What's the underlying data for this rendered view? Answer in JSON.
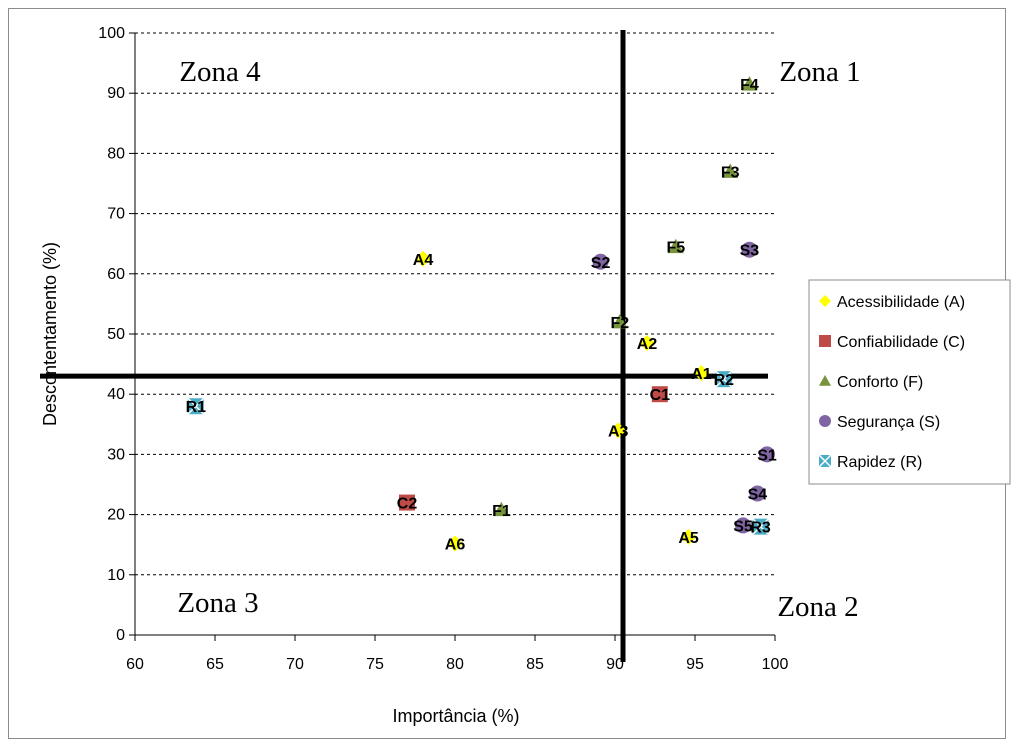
{
  "chart_data": {
    "type": "scatter",
    "xlabel": "Importância (%)",
    "ylabel": "Descontentamento (%)",
    "xlim": [
      60,
      100
    ],
    "ylim": [
      0,
      100
    ],
    "xticks": [
      "60",
      "65",
      "70",
      "75",
      "80",
      "85",
      "90",
      "95",
      "100"
    ],
    "yticks": [
      "0",
      "10",
      "20",
      "30",
      "40",
      "50",
      "60",
      "70",
      "80",
      "90",
      "100"
    ],
    "grid": "horizontal dashed",
    "legend_position": "right",
    "reference_lines": {
      "vertical_x": 90.5,
      "horizontal_y": 43
    },
    "zones": [
      {
        "label": "Zona 1",
        "corner": "top-right"
      },
      {
        "label": "Zona 2",
        "corner": "bottom-right"
      },
      {
        "label": "Zona 3",
        "corner": "bottom-left"
      },
      {
        "label": "Zona 4",
        "corner": "top-left"
      }
    ],
    "series": [
      {
        "name": "Acessibilidade (A)",
        "marker": "diamond",
        "color": "#FFFF00",
        "points": [
          {
            "label": "A1",
            "x": 95.4,
            "y": 43.5
          },
          {
            "label": "A2",
            "x": 92,
            "y": 48.5
          },
          {
            "label": "A3",
            "x": 90.2,
            "y": 34
          },
          {
            "label": "A4",
            "x": 78,
            "y": 62.5
          },
          {
            "label": "A5",
            "x": 94.6,
            "y": 16.3
          },
          {
            "label": "A6",
            "x": 80,
            "y": 15.2
          }
        ]
      },
      {
        "name": "Confiabilidade (C)",
        "marker": "square",
        "color": "#BE4B48",
        "points": [
          {
            "label": "C1",
            "x": 92.8,
            "y": 40
          },
          {
            "label": "C2",
            "x": 77,
            "y": 22
          }
        ]
      },
      {
        "name": "Conforto (F)",
        "marker": "triangle",
        "color": "#77933C",
        "points": [
          {
            "label": "F1",
            "x": 82.9,
            "y": 20.8
          },
          {
            "label": "F2",
            "x": 90.3,
            "y": 52
          },
          {
            "label": "F3",
            "x": 97.2,
            "y": 77
          },
          {
            "label": "F4",
            "x": 98.4,
            "y": 91.5
          },
          {
            "label": "F5",
            "x": 93.8,
            "y": 64.5
          }
        ]
      },
      {
        "name": "Segurança (S)",
        "marker": "circle",
        "color": "#7F65A2",
        "points": [
          {
            "label": "S1",
            "x": 99.5,
            "y": 30
          },
          {
            "label": "S2",
            "x": 89.1,
            "y": 62
          },
          {
            "label": "S3",
            "x": 98.4,
            "y": 64
          },
          {
            "label": "S4",
            "x": 98.9,
            "y": 23.5
          },
          {
            "label": "S5",
            "x": 98,
            "y": 18.2
          }
        ]
      },
      {
        "name": "Rapidez (R)",
        "marker": "star",
        "color": "#4BACC6",
        "points": [
          {
            "label": "R1",
            "x": 63.8,
            "y": 38
          },
          {
            "label": "R2",
            "x": 96.8,
            "y": 42.5
          },
          {
            "label": "R3",
            "x": 99.1,
            "y": 18
          }
        ]
      }
    ]
  }
}
